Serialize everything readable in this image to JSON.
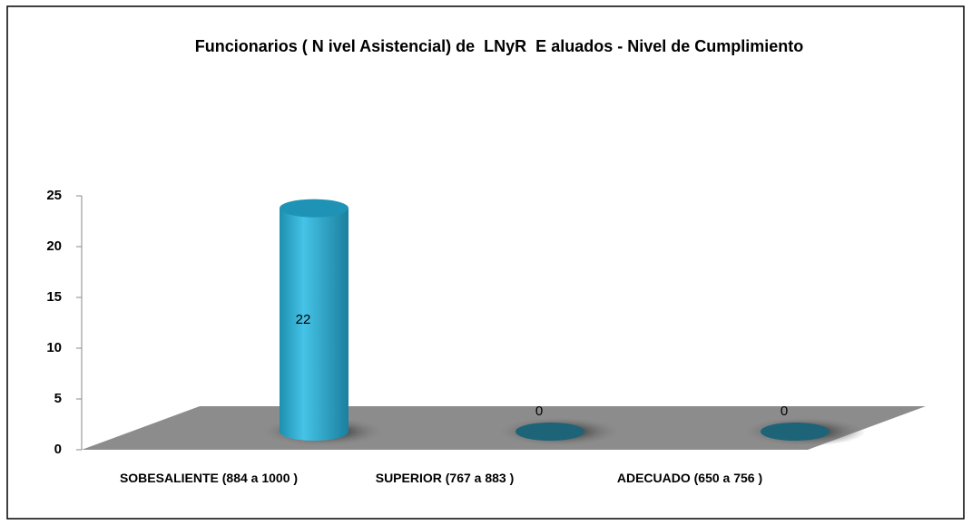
{
  "chart_data": {
    "type": "bar3d",
    "title": "Funcionarios ( N ivel Asistencial) de  LNyR  E aluados - Nivel de Cumplimiento",
    "categories": [
      "SOBESALIENTE (884 a 1000 )",
      "SUPERIOR (767 a 883 )",
      "ADECUADO (650 a 756 )"
    ],
    "values": [
      22,
      0,
      0
    ],
    "color": "#29acd0",
    "ylim": [
      0,
      25
    ],
    "yticks": [
      0,
      5,
      10,
      15,
      20,
      25
    ]
  }
}
